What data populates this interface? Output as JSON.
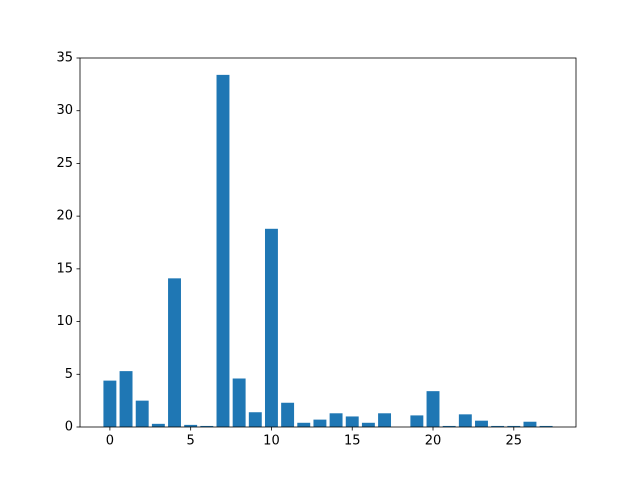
{
  "chart_data": {
    "type": "bar",
    "x": [
      0,
      1,
      2,
      3,
      4,
      5,
      6,
      7,
      8,
      9,
      10,
      11,
      12,
      13,
      14,
      15,
      16,
      17,
      18,
      19,
      20,
      21,
      22,
      23,
      24,
      25,
      26,
      27
    ],
    "values": [
      4.4,
      5.3,
      2.5,
      0.3,
      14.1,
      0.2,
      0.1,
      33.4,
      4.6,
      1.4,
      18.8,
      2.3,
      0.4,
      0.7,
      1.3,
      1.0,
      0.4,
      1.3,
      0,
      1.1,
      3.4,
      0.1,
      1.2,
      0.6,
      0.1,
      0.1,
      0.5,
      0.1
    ],
    "color": "#1f77b4",
    "xlim": [
      -1.85,
      28.85
    ],
    "xticks": [
      0,
      5,
      10,
      15,
      20,
      25
    ],
    "ylim": [
      0,
      35
    ],
    "yticks": [
      0,
      5,
      10,
      15,
      20,
      25,
      30,
      35
    ],
    "grid": false
  }
}
